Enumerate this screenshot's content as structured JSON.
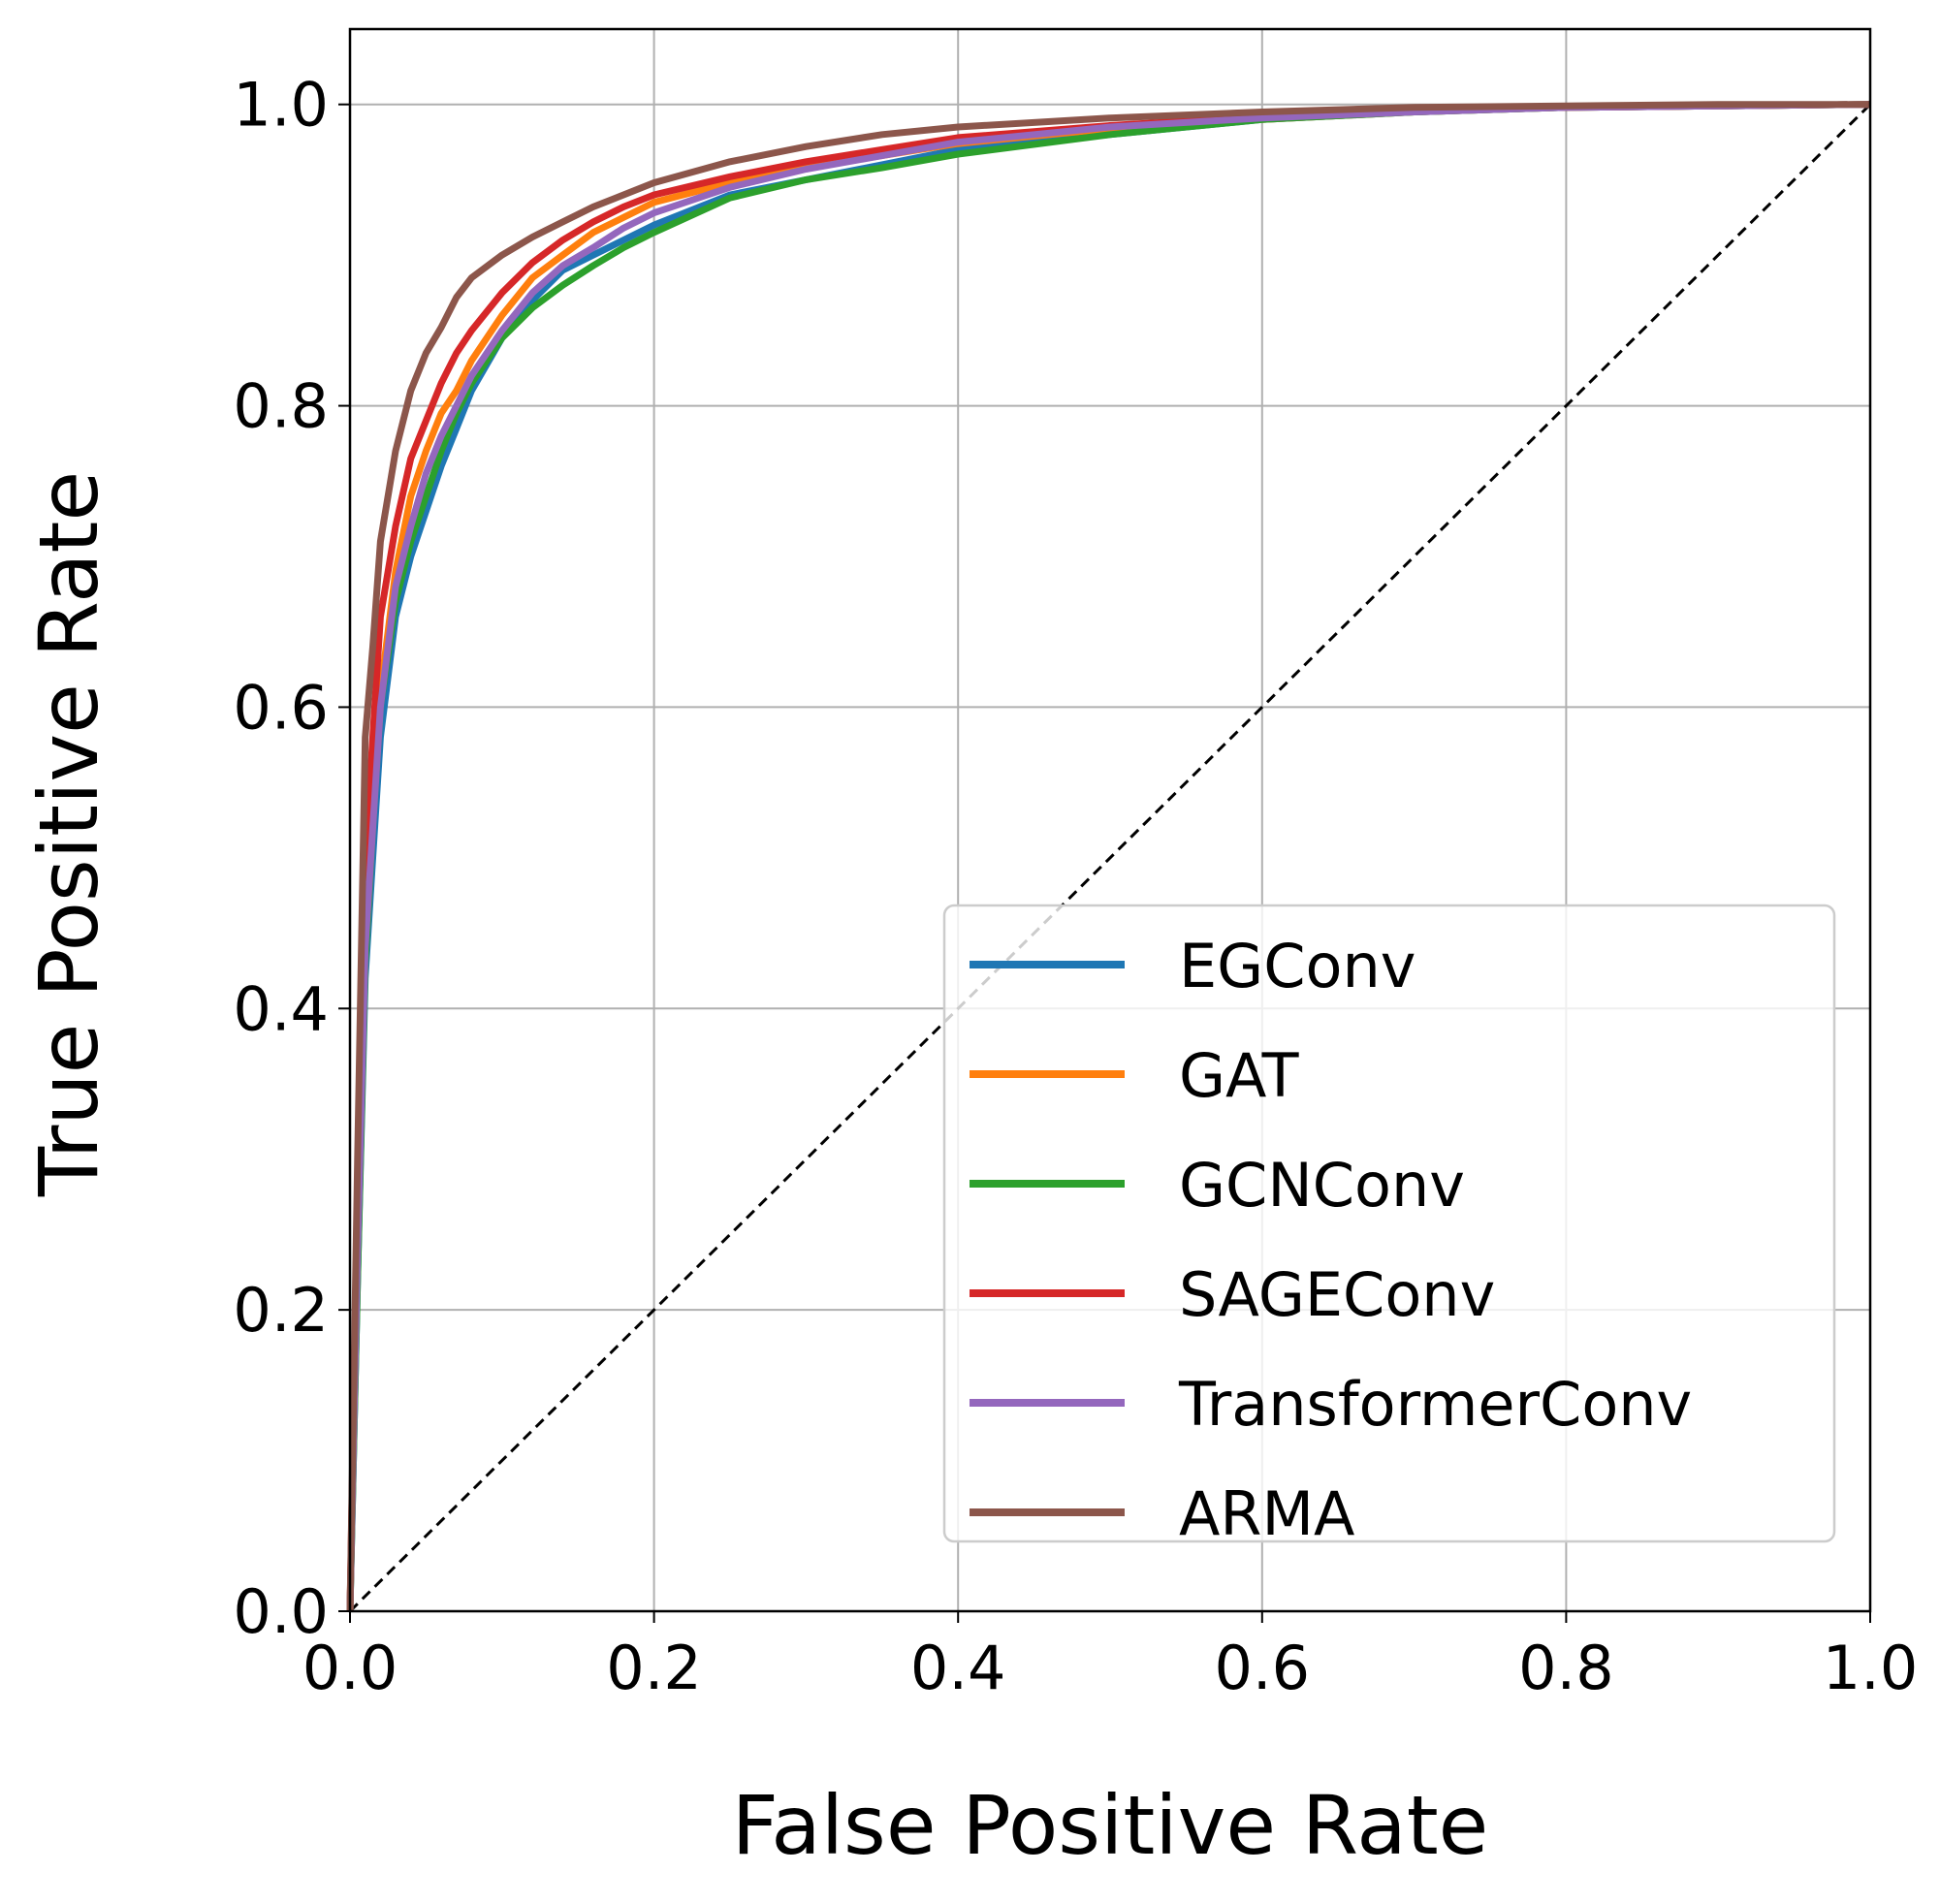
{
  "chart_data": {
    "type": "line",
    "title": "",
    "xlabel": "False Positive Rate",
    "ylabel": "True Positive Rate",
    "xlim": [
      0.0,
      1.0
    ],
    "ylim": [
      0.0,
      1.05
    ],
    "xticks": [
      "0.0",
      "0.2",
      "0.4",
      "0.6",
      "0.8",
      "1.0"
    ],
    "yticks": [
      "0.0",
      "0.2",
      "0.4",
      "0.6",
      "0.8",
      "1.0"
    ],
    "grid": true,
    "legend_position": "lower-right",
    "reference_line": {
      "style": "dashed",
      "color": "#000000",
      "x": [
        0.0,
        1.0
      ],
      "y": [
        0.0,
        1.0
      ]
    },
    "series": [
      {
        "name": "EGConv",
        "color": "#1f77b4",
        "x": [
          0,
          0.005,
          0.01,
          0.015,
          0.02,
          0.03,
          0.04,
          0.05,
          0.06,
          0.07,
          0.08,
          0.1,
          0.12,
          0.14,
          0.16,
          0.18,
          0.2,
          0.25,
          0.3,
          0.35,
          0.4,
          0.5,
          0.6,
          0.7,
          0.8,
          0.9,
          1.0
        ],
        "y": [
          0,
          0.22,
          0.42,
          0.5,
          0.58,
          0.66,
          0.7,
          0.73,
          0.76,
          0.785,
          0.81,
          0.845,
          0.87,
          0.89,
          0.9,
          0.91,
          0.92,
          0.94,
          0.95,
          0.96,
          0.97,
          0.98,
          0.99,
          0.995,
          0.998,
          0.999,
          1.0
        ]
      },
      {
        "name": "GAT",
        "color": "#ff7f0e",
        "x": [
          0,
          0.005,
          0.01,
          0.015,
          0.02,
          0.03,
          0.04,
          0.05,
          0.06,
          0.07,
          0.08,
          0.1,
          0.12,
          0.14,
          0.16,
          0.18,
          0.2,
          0.25,
          0.3,
          0.35,
          0.4,
          0.5,
          0.6,
          0.7,
          0.8,
          0.9,
          1.0
        ],
        "y": [
          0,
          0.25,
          0.45,
          0.53,
          0.61,
          0.69,
          0.74,
          0.77,
          0.795,
          0.81,
          0.83,
          0.86,
          0.885,
          0.9,
          0.915,
          0.925,
          0.935,
          0.948,
          0.958,
          0.966,
          0.974,
          0.984,
          0.99,
          0.995,
          0.998,
          0.999,
          1.0
        ]
      },
      {
        "name": "GCNConv",
        "color": "#2ca02c",
        "x": [
          0,
          0.005,
          0.01,
          0.015,
          0.02,
          0.03,
          0.04,
          0.05,
          0.06,
          0.07,
          0.08,
          0.1,
          0.12,
          0.14,
          0.16,
          0.18,
          0.2,
          0.25,
          0.3,
          0.35,
          0.4,
          0.5,
          0.6,
          0.7,
          0.8,
          0.9,
          1.0
        ],
        "y": [
          0,
          0.22,
          0.43,
          0.52,
          0.6,
          0.67,
          0.71,
          0.74,
          0.77,
          0.795,
          0.815,
          0.845,
          0.865,
          0.88,
          0.893,
          0.905,
          0.915,
          0.938,
          0.95,
          0.958,
          0.967,
          0.98,
          0.99,
          0.995,
          0.998,
          0.999,
          1.0
        ]
      },
      {
        "name": "SAGEConv",
        "color": "#d62728",
        "x": [
          0,
          0.005,
          0.01,
          0.015,
          0.02,
          0.03,
          0.04,
          0.05,
          0.06,
          0.07,
          0.08,
          0.1,
          0.12,
          0.14,
          0.16,
          0.18,
          0.2,
          0.25,
          0.3,
          0.35,
          0.4,
          0.5,
          0.6,
          0.7,
          0.8,
          0.9,
          1.0
        ],
        "y": [
          0,
          0.28,
          0.5,
          0.58,
          0.66,
          0.72,
          0.765,
          0.79,
          0.815,
          0.835,
          0.85,
          0.875,
          0.895,
          0.91,
          0.922,
          0.932,
          0.94,
          0.952,
          0.962,
          0.97,
          0.978,
          0.986,
          0.992,
          0.996,
          0.998,
          0.999,
          1.0
        ]
      },
      {
        "name": "TransformerConv",
        "color": "#9467bd",
        "x": [
          0,
          0.005,
          0.01,
          0.015,
          0.02,
          0.03,
          0.04,
          0.05,
          0.06,
          0.07,
          0.08,
          0.1,
          0.12,
          0.14,
          0.16,
          0.18,
          0.2,
          0.25,
          0.3,
          0.35,
          0.4,
          0.5,
          0.6,
          0.7,
          0.8,
          0.9,
          1.0
        ],
        "y": [
          0,
          0.24,
          0.44,
          0.52,
          0.6,
          0.68,
          0.72,
          0.755,
          0.78,
          0.8,
          0.82,
          0.85,
          0.875,
          0.893,
          0.905,
          0.918,
          0.928,
          0.945,
          0.957,
          0.966,
          0.975,
          0.985,
          0.991,
          0.995,
          0.998,
          0.999,
          1.0
        ]
      },
      {
        "name": "ARMA",
        "color": "#8c564b",
        "x": [
          0,
          0.005,
          0.01,
          0.015,
          0.02,
          0.03,
          0.04,
          0.05,
          0.06,
          0.07,
          0.08,
          0.1,
          0.12,
          0.14,
          0.16,
          0.18,
          0.2,
          0.25,
          0.3,
          0.35,
          0.4,
          0.5,
          0.6,
          0.7,
          0.8,
          0.9,
          1.0
        ],
        "y": [
          0,
          0.3,
          0.58,
          0.64,
          0.71,
          0.77,
          0.81,
          0.835,
          0.852,
          0.872,
          0.885,
          0.9,
          0.912,
          0.922,
          0.932,
          0.94,
          0.948,
          0.962,
          0.972,
          0.98,
          0.985,
          0.991,
          0.995,
          0.998,
          0.999,
          1.0,
          1.0
        ]
      }
    ]
  }
}
